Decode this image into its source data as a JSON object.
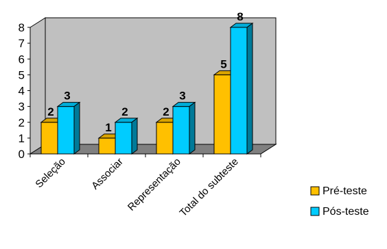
{
  "chart_data": {
    "type": "bar",
    "categories": [
      "Seleção",
      "Associar",
      "Representação",
      "Total do subteste"
    ],
    "series": [
      {
        "name": "Pré-teste",
        "values": [
          2,
          1,
          2,
          5
        ],
        "color": "#FFC000"
      },
      {
        "name": "Pós-teste",
        "values": [
          3,
          2,
          3,
          8
        ],
        "color": "#00CCFF"
      }
    ],
    "yticks": [
      "0",
      "1",
      "2",
      "3",
      "4",
      "5",
      "6",
      "7",
      "8"
    ],
    "ylim": [
      0,
      8
    ],
    "title": "",
    "xlabel": "",
    "ylabel": "",
    "grid": false,
    "legend_position": "bottom-right",
    "wall_color": "#C0C0C0",
    "floor_color": "#808080"
  }
}
